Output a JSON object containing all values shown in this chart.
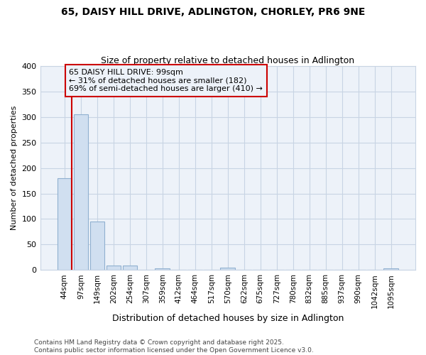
{
  "title1": "65, DAISY HILL DRIVE, ADLINGTON, CHORLEY, PR6 9NE",
  "title2": "Size of property relative to detached houses in Adlington",
  "xlabel": "Distribution of detached houses by size in Adlington",
  "ylabel": "Number of detached properties",
  "footnote1": "Contains HM Land Registry data © Crown copyright and database right 2025.",
  "footnote2": "Contains public sector information licensed under the Open Government Licence v3.0.",
  "bin_labels": [
    "44sqm",
    "97sqm",
    "149sqm",
    "202sqm",
    "254sqm",
    "307sqm",
    "359sqm",
    "412sqm",
    "464sqm",
    "517sqm",
    "570sqm",
    "622sqm",
    "675sqm",
    "727sqm",
    "780sqm",
    "832sqm",
    "885sqm",
    "937sqm",
    "990sqm",
    "1042sqm",
    "1095sqm"
  ],
  "bar_values": [
    180,
    305,
    95,
    8,
    9,
    0,
    3,
    0,
    0,
    0,
    4,
    0,
    0,
    0,
    0,
    0,
    0,
    0,
    0,
    0,
    3
  ],
  "bar_color": "#d0dff0",
  "bar_edge_color": "#90b0d0",
  "grid_color": "#c8d4e4",
  "bg_color": "#ffffff",
  "plot_bg_color": "#edf2f9",
  "annotation_line1": "65 DAISY HILL DRIVE: 99sqm",
  "annotation_line2": "← 31% of detached houses are smaller (182)",
  "annotation_line3": "69% of semi-detached houses are larger (410) →",
  "annotation_box_color": "#cc0000",
  "vline_color": "#cc0000",
  "ylim": [
    0,
    400
  ],
  "yticks": [
    0,
    50,
    100,
    150,
    200,
    250,
    300,
    350,
    400
  ],
  "title1_fontsize": 10,
  "title2_fontsize": 9,
  "xlabel_fontsize": 9,
  "ylabel_fontsize": 8,
  "tick_fontsize": 8,
  "xtick_fontsize": 7.5,
  "footnote_fontsize": 6.5,
  "annot_fontsize": 8
}
